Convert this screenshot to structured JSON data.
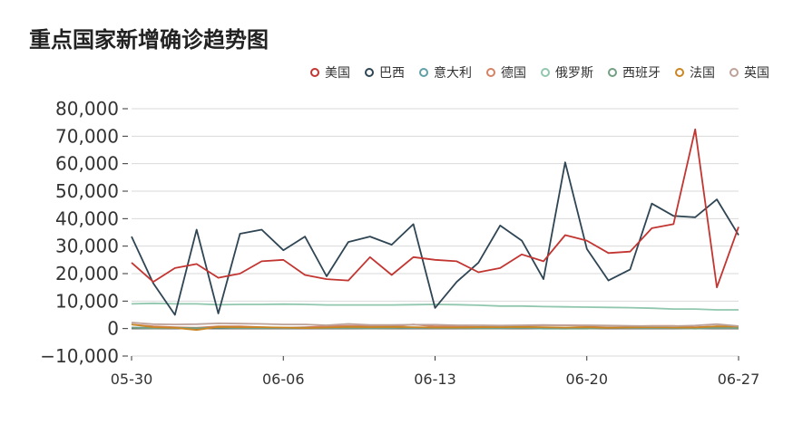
{
  "page": {
    "title": "重点国家新增确诊趋势图"
  },
  "chart_data": {
    "type": "line",
    "ylim": [
      -10000,
      80000
    ],
    "yticks": [
      -10000,
      0,
      10000,
      20000,
      30000,
      40000,
      50000,
      60000,
      70000,
      80000
    ],
    "ytick_labels": [
      "−10,000",
      "0",
      "10,000",
      "20,000",
      "30,000",
      "40,000",
      "50,000",
      "60,000",
      "70,000",
      "80,000"
    ],
    "x_tick_labels": [
      "05-30",
      "06-06",
      "06-13",
      "06-20",
      "06-27"
    ],
    "x_tick_indices": [
      0,
      7,
      14,
      21,
      28
    ],
    "legend_position": "top-right",
    "grid": true,
    "x": [
      "05-30",
      "05-31",
      "06-01",
      "06-02",
      "06-03",
      "06-04",
      "06-05",
      "06-06",
      "06-07",
      "06-08",
      "06-09",
      "06-10",
      "06-11",
      "06-12",
      "06-13",
      "06-14",
      "06-15",
      "06-16",
      "06-17",
      "06-18",
      "06-19",
      "06-20",
      "06-21",
      "06-22",
      "06-23",
      "06-24",
      "06-25",
      "06-26",
      "06-27"
    ],
    "series": [
      {
        "name": "美国",
        "color": "#c23531",
        "values": [
          24000,
          17000,
          22000,
          23500,
          18500,
          20000,
          24500,
          25000,
          19500,
          18000,
          17500,
          26000,
          19500,
          26000,
          25000,
          24500,
          20500,
          22000,
          27000,
          24500,
          34000,
          32000,
          27500,
          28000,
          36500,
          38000,
          72500,
          15000,
          37000
        ]
      },
      {
        "name": "巴西",
        "color": "#2f4554",
        "values": [
          33500,
          16500,
          5000,
          36000,
          5500,
          34500,
          36000,
          28500,
          33500,
          19000,
          31500,
          33500,
          30500,
          38000,
          7500,
          17000,
          24000,
          37500,
          32000,
          18000,
          60500,
          29000,
          17500,
          21500,
          45500,
          41000,
          40500,
          47000,
          34000
        ]
      },
      {
        "name": "意大利",
        "color": "#61a0a8",
        "values": [
          400,
          300,
          200,
          300,
          300,
          200,
          300,
          200,
          200,
          200,
          280,
          200,
          380,
          200,
          300,
          200,
          300,
          200,
          300,
          0,
          0,
          300,
          300,
          200,
          200,
          300,
          200,
          200,
          200
        ]
      },
      {
        "name": "德国",
        "color": "#d48265",
        "values": [
          1500,
          800,
          500,
          300,
          800,
          800,
          500,
          300,
          500,
          800,
          1000,
          1000,
          800,
          1500,
          800,
          800,
          600,
          1000,
          1000,
          1200,
          1200,
          1000,
          1000,
          800,
          1000,
          1000,
          500,
          800,
          800
        ]
      },
      {
        "name": "俄罗斯",
        "color": "#91c7ae",
        "values": [
          9000,
          9200,
          9000,
          9000,
          8700,
          8800,
          8800,
          8900,
          8800,
          8600,
          8600,
          8600,
          8600,
          8700,
          8800,
          8700,
          8500,
          8200,
          8200,
          8000,
          7900,
          7800,
          7700,
          7600,
          7400,
          7100,
          7100,
          6800,
          6800
        ]
      },
      {
        "name": "西班牙",
        "color": "#749f83",
        "values": [
          300,
          100,
          300,
          200,
          400,
          200,
          200,
          300,
          300,
          200,
          200,
          100,
          200,
          300,
          200,
          200,
          100,
          100,
          300,
          100,
          0,
          0,
          300,
          300,
          200,
          200,
          0,
          300,
          200
        ]
      },
      {
        "name": "法国",
        "color": "#ca8622",
        "values": [
          1500,
          500,
          300,
          -500,
          600,
          500,
          500,
          400,
          200,
          400,
          600,
          500,
          600,
          500,
          400,
          400,
          500,
          500,
          600,
          500,
          400,
          500,
          300,
          400,
          500,
          400,
          400,
          800,
          700
        ]
      },
      {
        "name": "英国",
        "color": "#bda29a",
        "values": [
          2200,
          1600,
          1500,
          1600,
          1900,
          1800,
          1700,
          1500,
          1500,
          1200,
          1700,
          1300,
          1300,
          1400,
          1400,
          1200,
          1200,
          1100,
          1200,
          1300,
          1200,
          1200,
          1100,
          1000,
          900,
          900,
          1100,
          1600,
          900
        ]
      }
    ]
  }
}
